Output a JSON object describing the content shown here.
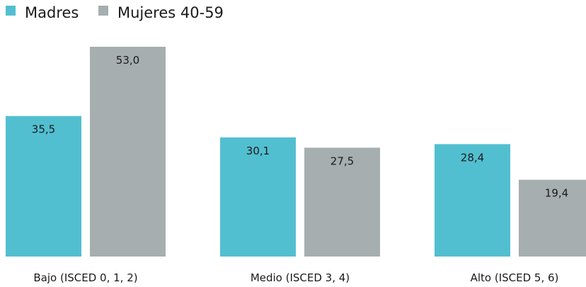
{
  "colors": {
    "madres": "#52bfd0",
    "mujeres": "#a6aeaf",
    "text": "#1a1a1a"
  },
  "chart_data": {
    "type": "bar",
    "title": "",
    "xlabel": "",
    "ylabel": "",
    "categories": [
      "Bajo (ISCED 0, 1, 2)",
      "Medio (ISCED 3, 4)",
      "Alto (ISCED 5, 6)"
    ],
    "series": [
      {
        "name": "Madres",
        "values": [
          35.5,
          30.1,
          28.4
        ],
        "labels": [
          "35,5",
          "30,1",
          "28,4"
        ]
      },
      {
        "name": "Mujeres 40-59",
        "values": [
          53.0,
          27.5,
          19.4
        ],
        "labels": [
          "53,0",
          "27,5",
          "19,4"
        ]
      }
    ],
    "ylim": [
      0,
      53
    ],
    "grid": false,
    "legend": "top-left"
  }
}
